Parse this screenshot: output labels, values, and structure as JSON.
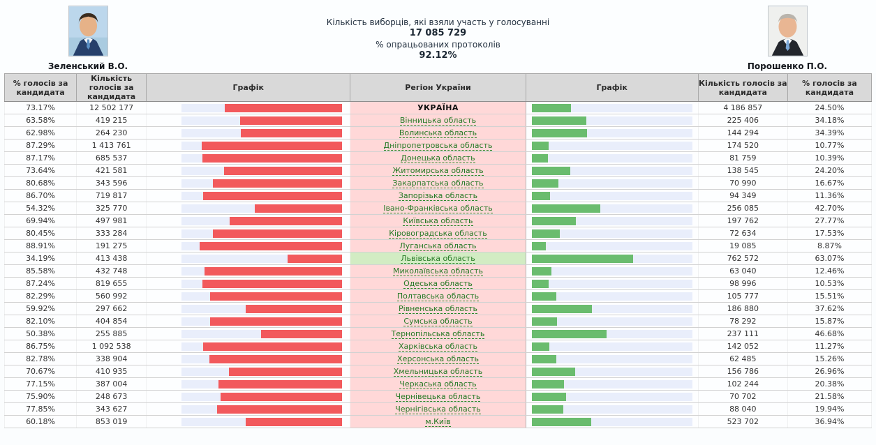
{
  "header": {
    "left_candidate": {
      "name": "Зеленський В.О.",
      "photo": "zelensky-portrait"
    },
    "right_candidate": {
      "name": "Порошенко П.О.",
      "photo": "poroshenko-portrait"
    },
    "stats": {
      "turnout_label": "Кількість виборців, які взяли участь у голосуванні",
      "turnout_value": "17 085 729",
      "protocols_label": "% опрацьованих протоколів",
      "protocols_value": "92.12%"
    }
  },
  "colors": {
    "left_bar_fill": "#f2595c",
    "right_bar_fill": "#6abc6e",
    "bar_track": "#e9eefb",
    "region_bg": "#ffd8d8",
    "region_highlight_bg": "#d2ecc3",
    "region_link": "#267a26",
    "header_bg": "#d9d9d9"
  },
  "table": {
    "headers": [
      "% голосів за кандидата",
      "Кількість голосів за кандидата",
      "Графік",
      "Регіон України",
      "Графік",
      "Кількість голосів за кандидата",
      "% голосів за кандидата"
    ],
    "rows": [
      {
        "left_pct": "73.17%",
        "left_votes": "12 502 177",
        "region": "УКРАЇНА",
        "right_votes": "4 186 857",
        "right_pct": "24.50%",
        "type": "total",
        "highlight": false
      },
      {
        "left_pct": "63.58%",
        "left_votes": "419 215",
        "region": "Вінницька область",
        "right_votes": "225 406",
        "right_pct": "34.18%",
        "type": "link",
        "highlight": false
      },
      {
        "left_pct": "62.98%",
        "left_votes": "264 230",
        "region": "Волинська область",
        "right_votes": "144 294",
        "right_pct": "34.39%",
        "type": "link",
        "highlight": false
      },
      {
        "left_pct": "87.29%",
        "left_votes": "1 413 761",
        "region": "Дніпропетровська область",
        "right_votes": "174 520",
        "right_pct": "10.77%",
        "type": "link",
        "highlight": false
      },
      {
        "left_pct": "87.17%",
        "left_votes": "685 537",
        "region": "Донецька область",
        "right_votes": "81 759",
        "right_pct": "10.39%",
        "type": "link",
        "highlight": false
      },
      {
        "left_pct": "73.64%",
        "left_votes": "421 581",
        "region": "Житомирська область",
        "right_votes": "138 545",
        "right_pct": "24.20%",
        "type": "link",
        "highlight": false
      },
      {
        "left_pct": "80.68%",
        "left_votes": "343 596",
        "region": "Закарпатська область",
        "right_votes": "70 990",
        "right_pct": "16.67%",
        "type": "link",
        "highlight": false
      },
      {
        "left_pct": "86.70%",
        "left_votes": "719 817",
        "region": "Запорізька область",
        "right_votes": "94 349",
        "right_pct": "11.36%",
        "type": "link",
        "highlight": false
      },
      {
        "left_pct": "54.32%",
        "left_votes": "325 770",
        "region": "Івано-Франківська область",
        "right_votes": "256 085",
        "right_pct": "42.70%",
        "type": "link",
        "highlight": false
      },
      {
        "left_pct": "69.94%",
        "left_votes": "497 981",
        "region": "Київська область",
        "right_votes": "197 762",
        "right_pct": "27.77%",
        "type": "link",
        "highlight": false
      },
      {
        "left_pct": "80.45%",
        "left_votes": "333 284",
        "region": "Кіровоградська область",
        "right_votes": "72 634",
        "right_pct": "17.53%",
        "type": "link",
        "highlight": false
      },
      {
        "left_pct": "88.91%",
        "left_votes": "191 275",
        "region": "Луганська область",
        "right_votes": "19 085",
        "right_pct": "8.87%",
        "type": "link",
        "highlight": false
      },
      {
        "left_pct": "34.19%",
        "left_votes": "413 438",
        "region": "Львівська область",
        "right_votes": "762 572",
        "right_pct": "63.07%",
        "type": "link",
        "highlight": true
      },
      {
        "left_pct": "85.58%",
        "left_votes": "432 748",
        "region": "Миколаївська область",
        "right_votes": "63 040",
        "right_pct": "12.46%",
        "type": "link",
        "highlight": false
      },
      {
        "left_pct": "87.24%",
        "left_votes": "819 655",
        "region": "Одеська область",
        "right_votes": "98 996",
        "right_pct": "10.53%",
        "type": "link",
        "highlight": false
      },
      {
        "left_pct": "82.29%",
        "left_votes": "560 992",
        "region": "Полтавська область",
        "right_votes": "105 777",
        "right_pct": "15.51%",
        "type": "link",
        "highlight": false
      },
      {
        "left_pct": "59.92%",
        "left_votes": "297 662",
        "region": "Рівненська область",
        "right_votes": "186 880",
        "right_pct": "37.62%",
        "type": "link",
        "highlight": false
      },
      {
        "left_pct": "82.10%",
        "left_votes": "404 854",
        "region": "Сумська область",
        "right_votes": "78 292",
        "right_pct": "15.87%",
        "type": "link",
        "highlight": false
      },
      {
        "left_pct": "50.38%",
        "left_votes": "255 885",
        "region": "Тернопільська область",
        "right_votes": "237 111",
        "right_pct": "46.68%",
        "type": "link",
        "highlight": false
      },
      {
        "left_pct": "86.75%",
        "left_votes": "1 092 538",
        "region": "Харківська область",
        "right_votes": "142 052",
        "right_pct": "11.27%",
        "type": "link",
        "highlight": false
      },
      {
        "left_pct": "82.78%",
        "left_votes": "338 904",
        "region": "Херсонська область",
        "right_votes": "62 485",
        "right_pct": "15.26%",
        "type": "link",
        "highlight": false
      },
      {
        "left_pct": "70.67%",
        "left_votes": "410 935",
        "region": "Хмельницька область",
        "right_votes": "156 786",
        "right_pct": "26.96%",
        "type": "link",
        "highlight": false
      },
      {
        "left_pct": "77.15%",
        "left_votes": "387 004",
        "region": "Черкаська область",
        "right_votes": "102 244",
        "right_pct": "20.38%",
        "type": "link",
        "highlight": false
      },
      {
        "left_pct": "75.90%",
        "left_votes": "248 673",
        "region": "Чернівецька область",
        "right_votes": "70 702",
        "right_pct": "21.58%",
        "type": "link",
        "highlight": false
      },
      {
        "left_pct": "77.85%",
        "left_votes": "343 627",
        "region": "Чернігівська область",
        "right_votes": "88 040",
        "right_pct": "19.94%",
        "type": "link",
        "highlight": false
      },
      {
        "left_pct": "60.18%",
        "left_votes": "853 019",
        "region": "м.Київ",
        "right_votes": "523 702",
        "right_pct": "36.94%",
        "type": "link",
        "highlight": false
      }
    ]
  }
}
